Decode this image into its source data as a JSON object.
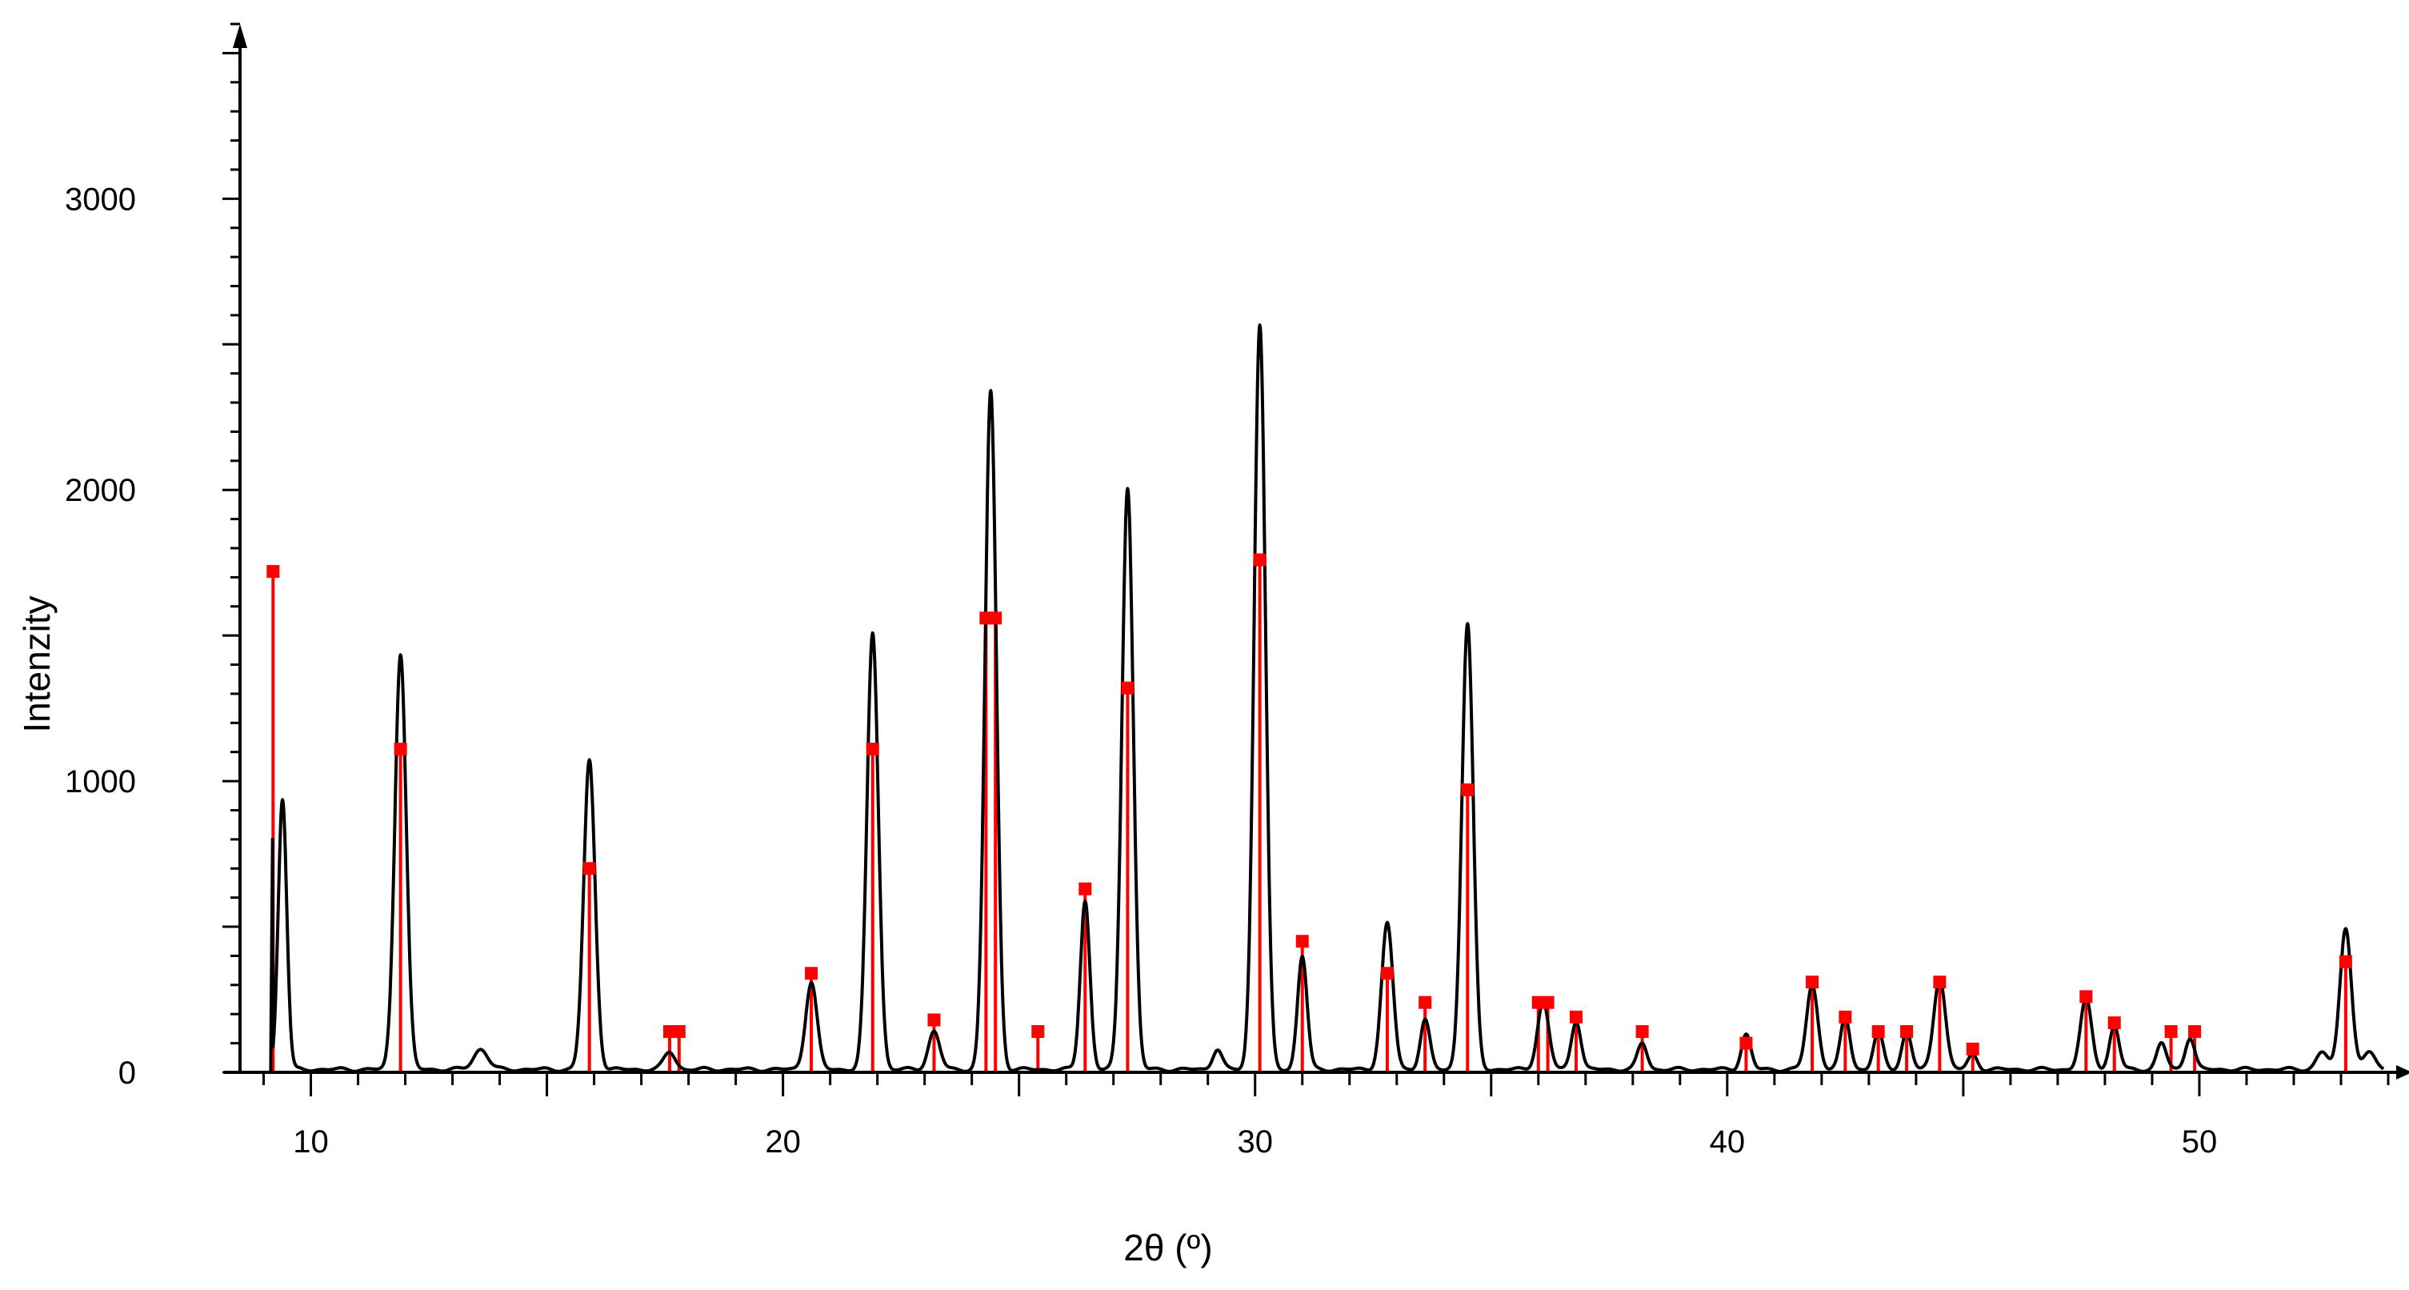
{
  "chart_data": {
    "type": "line",
    "xlabel": "2θ (º)",
    "ylabel": "Intenzity",
    "xlim": [
      8.5,
      54
    ],
    "ylim": [
      0,
      3600
    ],
    "x_ticks": [
      10,
      20,
      30,
      40,
      50
    ],
    "y_ticks": [
      0,
      1000,
      2000,
      3000
    ],
    "grid": false,
    "colors": {
      "pattern": "#000000",
      "reference": "#ff0000"
    },
    "pattern_peaks": [
      {
        "x": 9.4,
        "y": 930,
        "w": 0.09
      },
      {
        "x": 11.9,
        "y": 1430,
        "w": 0.12
      },
      {
        "x": 13.6,
        "y": 70,
        "w": 0.15
      },
      {
        "x": 15.9,
        "y": 1060,
        "w": 0.12
      },
      {
        "x": 17.6,
        "y": 60,
        "w": 0.12
      },
      {
        "x": 20.6,
        "y": 300,
        "w": 0.12
      },
      {
        "x": 21.9,
        "y": 1500,
        "w": 0.12
      },
      {
        "x": 23.2,
        "y": 130,
        "w": 0.12
      },
      {
        "x": 24.4,
        "y": 2330,
        "w": 0.12
      },
      {
        "x": 26.4,
        "y": 580,
        "w": 0.1
      },
      {
        "x": 27.3,
        "y": 2000,
        "w": 0.12
      },
      {
        "x": 29.2,
        "y": 70,
        "w": 0.1
      },
      {
        "x": 30.1,
        "y": 2560,
        "w": 0.12
      },
      {
        "x": 31.0,
        "y": 390,
        "w": 0.1
      },
      {
        "x": 32.8,
        "y": 500,
        "w": 0.12
      },
      {
        "x": 33.6,
        "y": 170,
        "w": 0.1
      },
      {
        "x": 34.5,
        "y": 1530,
        "w": 0.12
      },
      {
        "x": 36.1,
        "y": 230,
        "w": 0.12
      },
      {
        "x": 36.8,
        "y": 170,
        "w": 0.1
      },
      {
        "x": 38.2,
        "y": 90,
        "w": 0.1
      },
      {
        "x": 40.4,
        "y": 120,
        "w": 0.1
      },
      {
        "x": 41.8,
        "y": 290,
        "w": 0.12
      },
      {
        "x": 42.5,
        "y": 180,
        "w": 0.1
      },
      {
        "x": 43.2,
        "y": 130,
        "w": 0.1
      },
      {
        "x": 43.8,
        "y": 130,
        "w": 0.1
      },
      {
        "x": 44.5,
        "y": 320,
        "w": 0.12
      },
      {
        "x": 45.2,
        "y": 50,
        "w": 0.1
      },
      {
        "x": 47.6,
        "y": 240,
        "w": 0.12
      },
      {
        "x": 48.2,
        "y": 150,
        "w": 0.1
      },
      {
        "x": 49.2,
        "y": 90,
        "w": 0.1
      },
      {
        "x": 49.8,
        "y": 110,
        "w": 0.1
      },
      {
        "x": 52.6,
        "y": 60,
        "w": 0.12
      },
      {
        "x": 53.1,
        "y": 490,
        "w": 0.12
      },
      {
        "x": 53.6,
        "y": 60,
        "w": 0.12
      }
    ],
    "reference_lines": [
      {
        "x": 9.2,
        "y": 1720
      },
      {
        "x": 11.9,
        "y": 1110
      },
      {
        "x": 15.9,
        "y": 700
      },
      {
        "x": 17.6,
        "y": 140
      },
      {
        "x": 17.8,
        "y": 140
      },
      {
        "x": 20.6,
        "y": 340
      },
      {
        "x": 21.9,
        "y": 1110
      },
      {
        "x": 23.2,
        "y": 180
      },
      {
        "x": 24.3,
        "y": 1560
      },
      {
        "x": 24.5,
        "y": 1560
      },
      {
        "x": 25.4,
        "y": 140
      },
      {
        "x": 26.4,
        "y": 630
      },
      {
        "x": 27.3,
        "y": 1320
      },
      {
        "x": 30.1,
        "y": 1760
      },
      {
        "x": 31.0,
        "y": 450
      },
      {
        "x": 32.8,
        "y": 340
      },
      {
        "x": 33.6,
        "y": 240
      },
      {
        "x": 34.5,
        "y": 970
      },
      {
        "x": 36.0,
        "y": 240
      },
      {
        "x": 36.2,
        "y": 240
      },
      {
        "x": 36.8,
        "y": 190
      },
      {
        "x": 38.2,
        "y": 140
      },
      {
        "x": 40.4,
        "y": 100
      },
      {
        "x": 41.8,
        "y": 310
      },
      {
        "x": 42.5,
        "y": 190
      },
      {
        "x": 43.2,
        "y": 140
      },
      {
        "x": 43.8,
        "y": 140
      },
      {
        "x": 44.5,
        "y": 310
      },
      {
        "x": 45.2,
        "y": 80
      },
      {
        "x": 47.6,
        "y": 260
      },
      {
        "x": 48.2,
        "y": 170
      },
      {
        "x": 49.4,
        "y": 140
      },
      {
        "x": 49.9,
        "y": 140
      },
      {
        "x": 53.1,
        "y": 380
      }
    ]
  }
}
